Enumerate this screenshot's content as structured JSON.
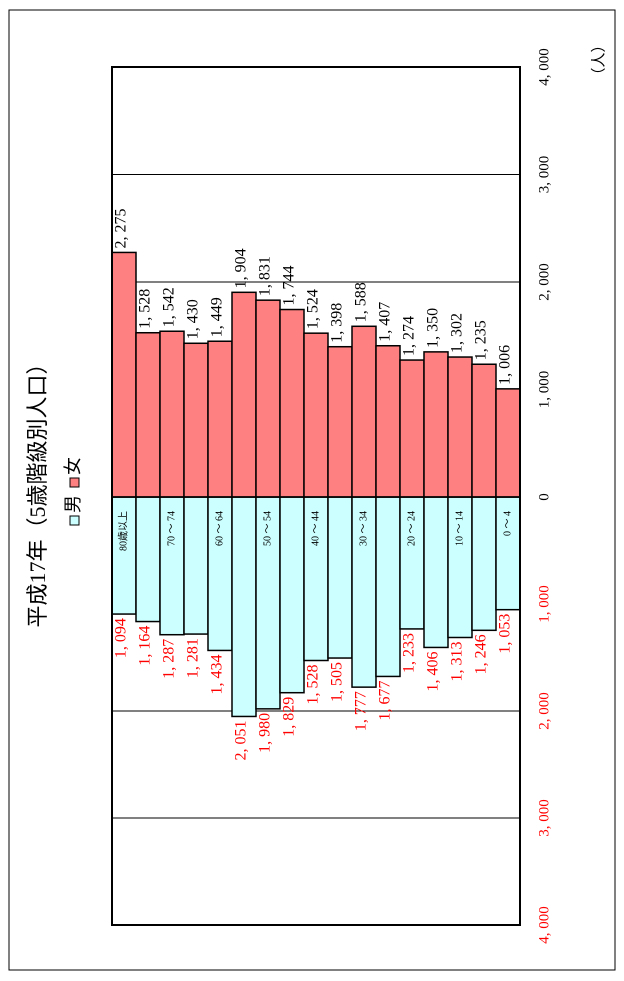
{
  "chart_data": {
    "type": "pyramid",
    "title": "平成17年（5歳階級別人口）",
    "unit_label": "（人）",
    "categories": [
      "80歳以上",
      null,
      "70 ～ 74",
      null,
      "60 ～ 64",
      null,
      "50 ～ 54",
      null,
      "40 ～ 44",
      null,
      "30 ～ 34",
      null,
      "20 ～ 24",
      null,
      "10 ～ 14",
      null,
      "0 ～ 4"
    ],
    "series": [
      {
        "name": "男",
        "color": "#ccffff",
        "axis": "y2",
        "values": [
          1094,
          1164,
          1287,
          1281,
          1434,
          2051,
          1980,
          1829,
          1528,
          1505,
          1777,
          1677,
          1233,
          1406,
          1313,
          1246,
          1053
        ],
        "value_labels": [
          "1, 094",
          "1, 164",
          "1, 287",
          "1, 281",
          "1, 434",
          "2, 051",
          "1, 980",
          "1, 829",
          "1, 528",
          "1, 505",
          "1, 777",
          "1, 677",
          "1, 233",
          "1, 406",
          "1, 313",
          "1, 246",
          "1, 053"
        ]
      },
      {
        "name": "女",
        "color": "#ff8080",
        "values": [
          2275,
          1528,
          1542,
          1430,
          1449,
          1904,
          1831,
          1744,
          1524,
          1398,
          1588,
          1407,
          1274,
          1350,
          1302,
          1235,
          1006
        ],
        "value_labels": [
          "2, 275",
          "1, 528",
          "1, 542",
          "1, 430",
          "1, 449",
          "1, 904",
          "1, 831",
          "1, 744",
          "1, 524",
          "1, 398",
          "1, 588",
          "1, 407",
          "1, 274",
          "1, 350",
          "1, 302",
          "1, 235",
          "1, 006"
        ]
      }
    ],
    "ylim": [
      0,
      4000
    ],
    "yticks": [
      0,
      {
        "value": 1000,
        "label": "1, 000"
      },
      {
        "value": 2000,
        "label": "2, 000"
      },
      {
        "value": 3000,
        "label": "3, 000"
      },
      {
        "value": 4000,
        "label": "4, 000"
      }
    ],
    "y2lim": [
      0,
      4000
    ],
    "y2ticks": [
      {
        "value": 1000,
        "label": "1, 000"
      },
      {
        "value": 2000,
        "label": "2, 000"
      },
      {
        "value": 3000,
        "label": "3, 000"
      },
      {
        "value": 4000,
        "label": "4, 000"
      }
    ],
    "grid": true
  }
}
